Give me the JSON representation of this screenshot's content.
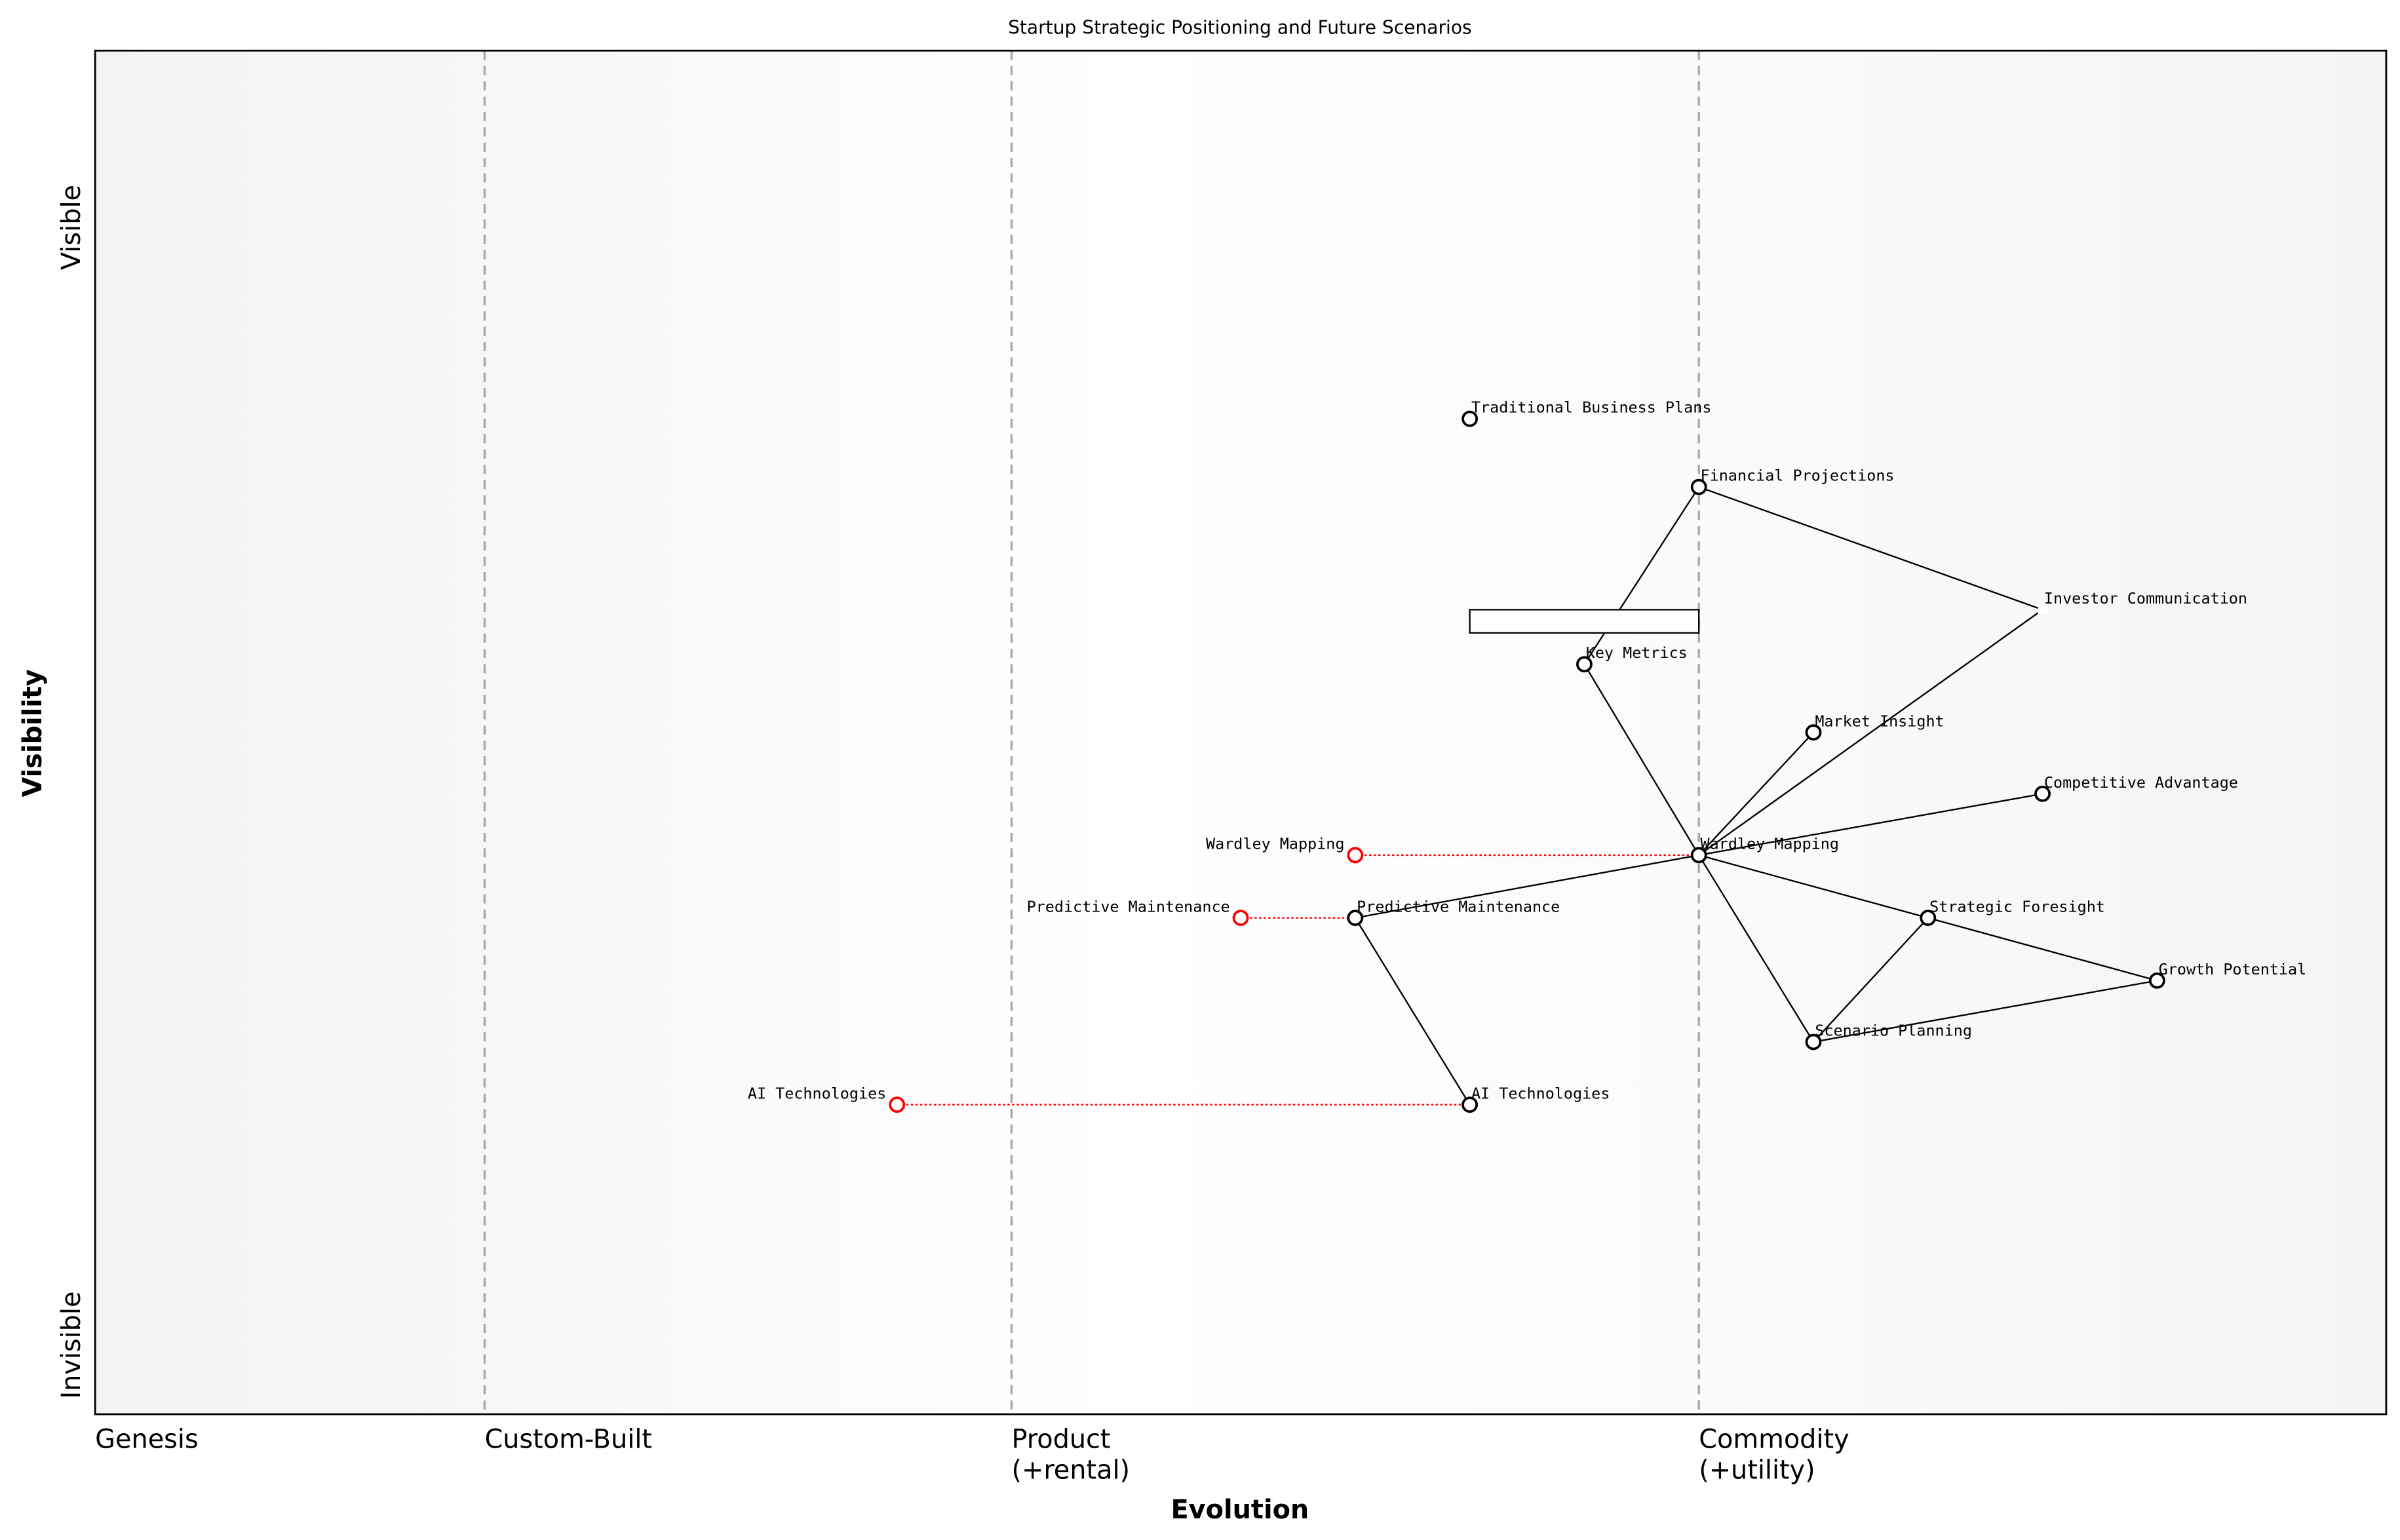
{
  "title": "Startup Strategic Positioning and Future Scenarios",
  "x_axis": {
    "label": "Evolution",
    "stages": [
      {
        "label": [
          "Genesis"
        ],
        "at": 0.0
      },
      {
        "label": [
          "Custom-Built"
        ],
        "at": 0.17
      },
      {
        "label": [
          "Product",
          "(+rental)"
        ],
        "at": 0.4
      },
      {
        "label": [
          "Commodity",
          "(+utility)"
        ],
        "at": 0.7
      }
    ]
  },
  "y_axis": {
    "label": "Visibility",
    "top_label": "Visible",
    "bottom_label": "Invisible"
  },
  "colors": {
    "node": "#000000",
    "future": "#ff0000",
    "stage_line": "#aaaaaa"
  },
  "components": [
    {
      "name": "Traditional Business Plans",
      "evolution": 0.6,
      "visibility": 0.73
    },
    {
      "name": "Financial Projections",
      "evolution": 0.7,
      "visibility": 0.68
    },
    {
      "name": "Investor Communication",
      "evolution": 0.85,
      "visibility": 0.59,
      "hidden_marker": true
    },
    {
      "name": "Key Metrics",
      "evolution": 0.65,
      "visibility": 0.55
    },
    {
      "name": "Market Insight",
      "evolution": 0.75,
      "visibility": 0.5
    },
    {
      "name": "Competitive Advantage",
      "evolution": 0.85,
      "visibility": 0.455
    },
    {
      "name": "Wardley Mapping",
      "evolution": 0.7,
      "visibility": 0.41
    },
    {
      "name": "Predictive Maintenance",
      "evolution": 0.55,
      "visibility": 0.364
    },
    {
      "name": "Strategic Foresight",
      "evolution": 0.8,
      "visibility": 0.364
    },
    {
      "name": "Growth Potential",
      "evolution": 0.9,
      "visibility": 0.318
    },
    {
      "name": "Scenario Planning",
      "evolution": 0.75,
      "visibility": 0.273
    },
    {
      "name": "AI Technologies",
      "evolution": 0.6,
      "visibility": 0.227
    }
  ],
  "links": [
    [
      "Financial Projections",
      "Key Metrics"
    ],
    [
      "Financial Projections",
      "Investor Communication"
    ],
    [
      "Key Metrics",
      "Wardley Mapping"
    ],
    [
      "Wardley Mapping",
      "Market Insight"
    ],
    [
      "Wardley Mapping",
      "Investor Communication"
    ],
    [
      "Wardley Mapping",
      "Competitive Advantage"
    ],
    [
      "Wardley Mapping",
      "Predictive Maintenance"
    ],
    [
      "Wardley Mapping",
      "Strategic Foresight"
    ],
    [
      "Wardley Mapping",
      "Scenario Planning"
    ],
    [
      "Strategic Foresight",
      "Growth Potential"
    ],
    [
      "Strategic Foresight",
      "Scenario Planning"
    ],
    [
      "Scenario Planning",
      "Growth Potential"
    ],
    [
      "Predictive Maintenance",
      "AI Technologies"
    ]
  ],
  "evolve": [
    {
      "name": "Wardley Mapping",
      "from": 0.7,
      "to": 0.55,
      "visibility": 0.41
    },
    {
      "name": "Predictive Maintenance",
      "from": 0.55,
      "to": 0.5,
      "visibility": 0.364
    },
    {
      "name": "AI Technologies",
      "from": 0.6,
      "to": 0.35,
      "visibility": 0.227
    }
  ],
  "annotation_box": {
    "evolution": [
      0.6,
      0.7
    ],
    "visibility": [
      0.573,
      0.59
    ]
  }
}
